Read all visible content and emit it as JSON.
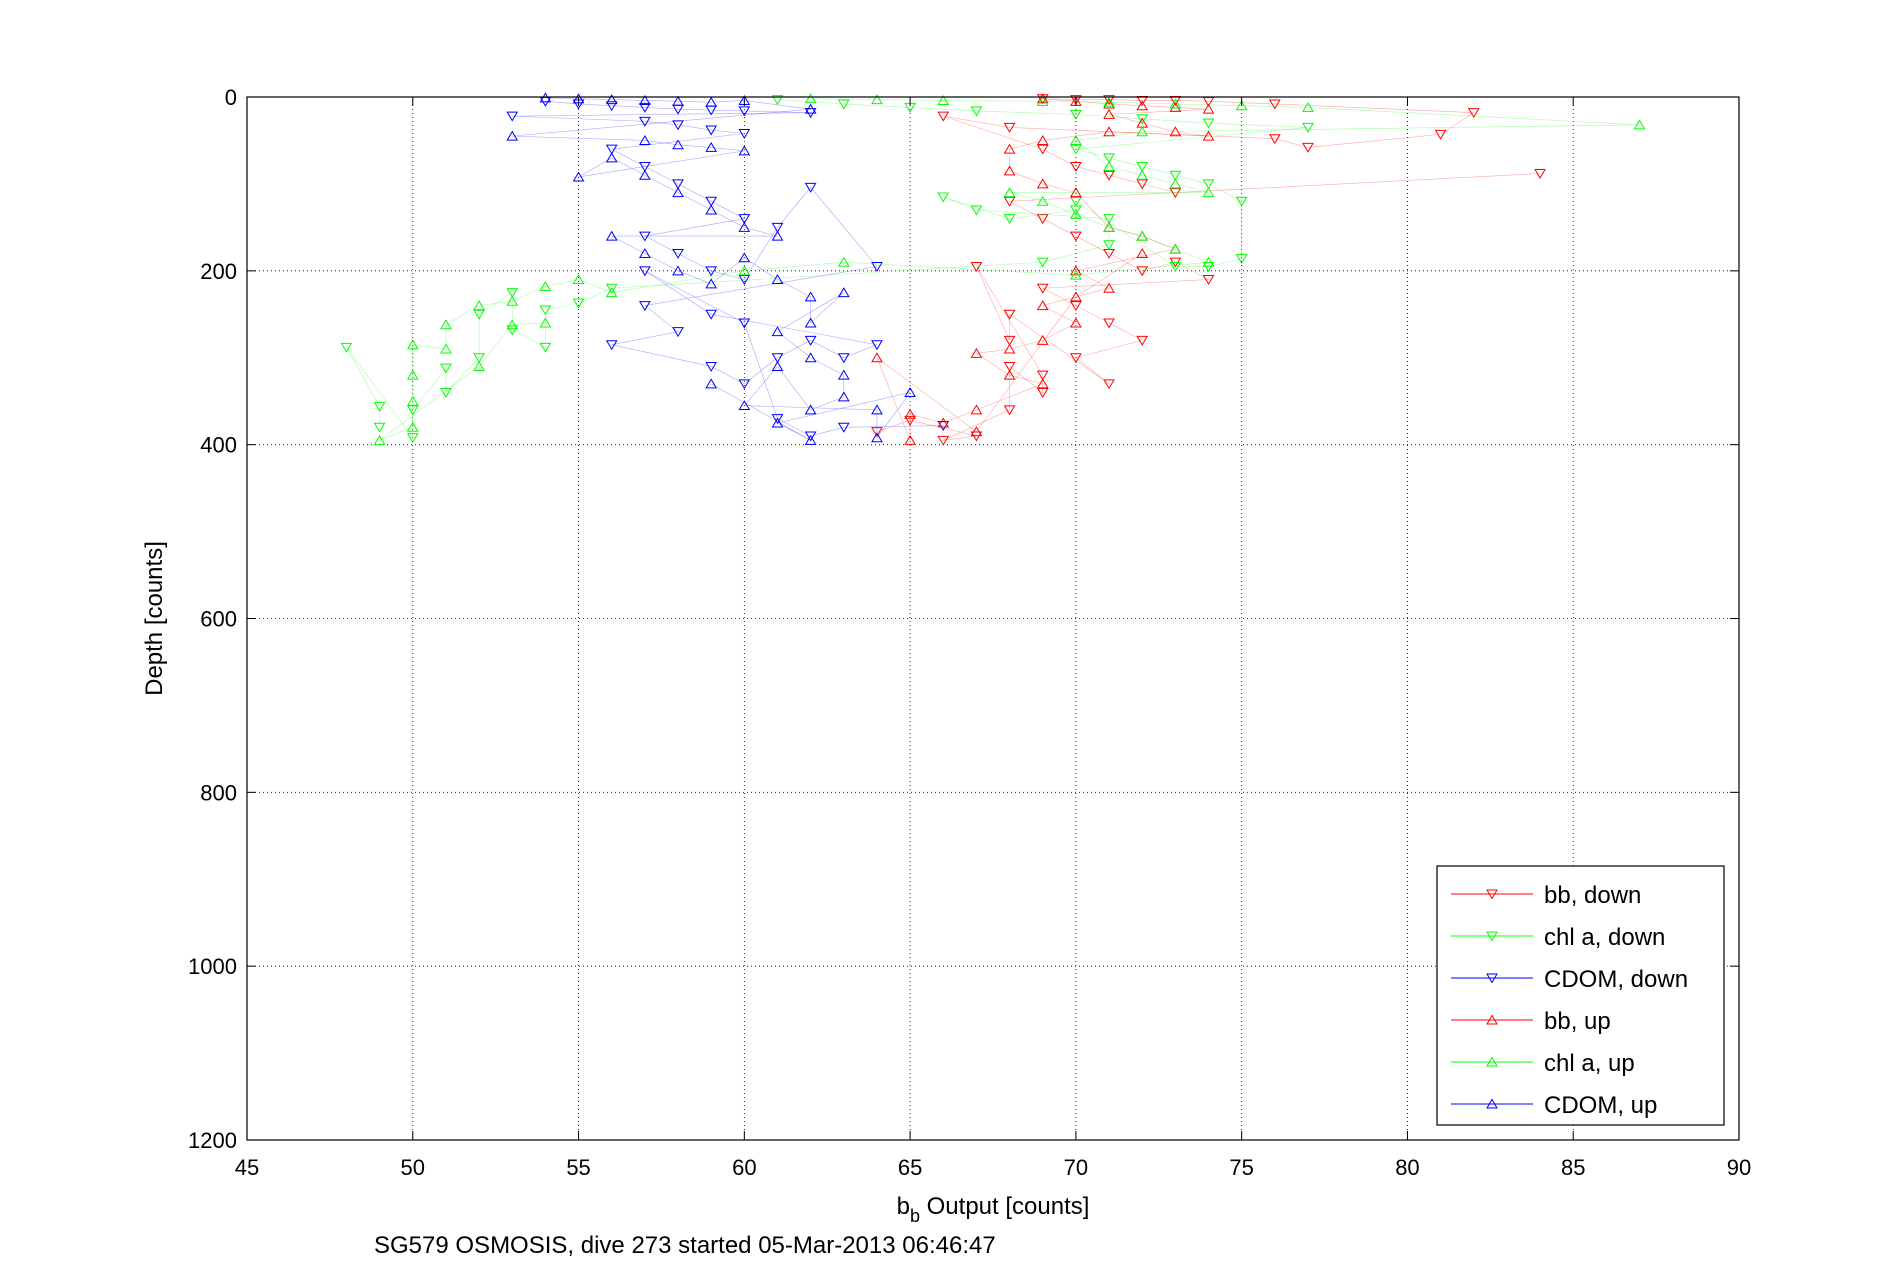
{
  "chart_data": {
    "type": "scatter",
    "title": "",
    "xlabel_main": "b",
    "xlabel_sub": "b",
    "xlabel_rest": " Output [counts]",
    "ylabel": "Depth [counts]",
    "caption": "SG579 OSMOSIS, dive 273 started 05-Mar-2013 06:46:47",
    "xlim": [
      45,
      90
    ],
    "ylim": [
      0,
      1200
    ],
    "y_reversed": true,
    "grid": true,
    "legend_position": "bottom-right",
    "x_ticks": [
      "45",
      "50",
      "55",
      "60",
      "65",
      "70",
      "75",
      "80",
      "85",
      "90"
    ],
    "y_ticks": [
      "0",
      "200",
      "400",
      "600",
      "800",
      "1000",
      "1200"
    ],
    "series": [
      {
        "name": "bb, down",
        "color": "#ff0000",
        "marker": "triangle-down",
        "points": [
          [
            69,
            2
          ],
          [
            70,
            3
          ],
          [
            71,
            3
          ],
          [
            72,
            4
          ],
          [
            73,
            4
          ],
          [
            74,
            5
          ],
          [
            76,
            8
          ],
          [
            82,
            18
          ],
          [
            81,
            43
          ],
          [
            77,
            58
          ],
          [
            76,
            48
          ],
          [
            68,
            35
          ],
          [
            66,
            22
          ],
          [
            69,
            60
          ],
          [
            70,
            80
          ],
          [
            71,
            90
          ],
          [
            72,
            100
          ],
          [
            73,
            110
          ],
          [
            84,
            88
          ],
          [
            68,
            120
          ],
          [
            69,
            140
          ],
          [
            70,
            160
          ],
          [
            71,
            180
          ],
          [
            72,
            200
          ],
          [
            73,
            190
          ],
          [
            74,
            210
          ],
          [
            69,
            220
          ],
          [
            70,
            240
          ],
          [
            71,
            260
          ],
          [
            72,
            280
          ],
          [
            70,
            300
          ],
          [
            71,
            330
          ],
          [
            68,
            250
          ],
          [
            68,
            280
          ],
          [
            67,
            195
          ],
          [
            69,
            320
          ],
          [
            69,
            340
          ],
          [
            68,
            310
          ],
          [
            68,
            360
          ],
          [
            66,
            395
          ],
          [
            67,
            390
          ],
          [
            65,
            372
          ],
          [
            64,
            385
          ]
        ]
      },
      {
        "name": "chl a, down",
        "color": "#00ff00",
        "marker": "triangle-down",
        "points": [
          [
            61,
            3
          ],
          [
            63,
            8
          ],
          [
            65,
            12
          ],
          [
            67,
            16
          ],
          [
            70,
            20
          ],
          [
            72,
            25
          ],
          [
            74,
            30
          ],
          [
            77,
            35
          ],
          [
            70,
            60
          ],
          [
            71,
            70
          ],
          [
            72,
            80
          ],
          [
            73,
            90
          ],
          [
            74,
            100
          ],
          [
            75,
            120
          ],
          [
            75,
            186
          ],
          [
            74,
            195
          ],
          [
            73,
            195
          ],
          [
            70,
            120
          ],
          [
            70,
            130
          ],
          [
            68,
            140
          ],
          [
            66,
            115
          ],
          [
            67,
            130
          ],
          [
            71,
            140
          ],
          [
            71,
            170
          ],
          [
            69,
            190
          ],
          [
            56,
            220
          ],
          [
            55,
            237
          ],
          [
            54,
            245
          ],
          [
            54,
            288
          ],
          [
            53,
            268
          ],
          [
            53,
            225
          ],
          [
            52,
            250
          ],
          [
            52,
            300
          ],
          [
            51,
            340
          ],
          [
            51,
            312
          ],
          [
            50,
            360
          ],
          [
            50,
            392
          ],
          [
            48,
            288
          ],
          [
            49,
            356
          ],
          [
            49,
            380
          ]
        ]
      },
      {
        "name": "CDOM, down",
        "color": "#0000ff",
        "marker": "triangle-down",
        "points": [
          [
            54,
            5
          ],
          [
            55,
            8
          ],
          [
            56,
            10
          ],
          [
            57,
            12
          ],
          [
            58,
            14
          ],
          [
            59,
            15
          ],
          [
            60,
            16
          ],
          [
            62,
            18
          ],
          [
            53,
            22
          ],
          [
            57,
            28
          ],
          [
            58,
            32
          ],
          [
            59,
            38
          ],
          [
            60,
            42
          ],
          [
            56,
            60
          ],
          [
            57,
            80
          ],
          [
            58,
            100
          ],
          [
            59,
            120
          ],
          [
            60,
            140
          ],
          [
            57,
            160
          ],
          [
            58,
            180
          ],
          [
            59,
            200
          ],
          [
            60,
            210
          ],
          [
            61,
            150
          ],
          [
            62,
            104
          ],
          [
            64,
            195
          ],
          [
            57,
            240
          ],
          [
            58,
            270
          ],
          [
            56,
            285
          ],
          [
            59,
            310
          ],
          [
            60,
            330
          ],
          [
            61,
            300
          ],
          [
            62,
            280
          ],
          [
            63,
            300
          ],
          [
            64,
            285
          ],
          [
            59,
            250
          ],
          [
            57,
            200
          ],
          [
            60,
            260
          ],
          [
            61,
            370
          ],
          [
            62,
            390
          ],
          [
            63,
            380
          ],
          [
            66,
            378
          ]
        ]
      },
      {
        "name": "bb, up",
        "color": "#ff0000",
        "marker": "triangle-up",
        "points": [
          [
            69,
            2
          ],
          [
            70,
            5
          ],
          [
            71,
            8
          ],
          [
            72,
            10
          ],
          [
            73,
            12
          ],
          [
            74,
            14
          ],
          [
            71,
            20
          ],
          [
            72,
            30
          ],
          [
            73,
            40
          ],
          [
            74,
            45
          ],
          [
            71,
            40
          ],
          [
            69,
            50
          ],
          [
            68,
            60
          ],
          [
            68,
            85
          ],
          [
            69,
            100
          ],
          [
            70,
            110
          ],
          [
            71,
            150
          ],
          [
            72,
            160
          ],
          [
            73,
            175
          ],
          [
            70,
            200
          ],
          [
            71,
            220
          ],
          [
            69,
            240
          ],
          [
            70,
            260
          ],
          [
            69,
            280
          ],
          [
            68,
            290
          ],
          [
            67,
            295
          ],
          [
            68,
            320
          ],
          [
            69,
            330
          ],
          [
            67,
            360
          ],
          [
            66,
            375
          ],
          [
            65,
            365
          ],
          [
            65,
            395
          ],
          [
            64,
            300
          ],
          [
            67,
            385
          ],
          [
            70,
            230
          ],
          [
            72,
            180
          ]
        ]
      },
      {
        "name": "chl a, up",
        "color": "#00ff00",
        "marker": "triangle-up",
        "points": [
          [
            62,
            2
          ],
          [
            64,
            3
          ],
          [
            66,
            4
          ],
          [
            69,
            5
          ],
          [
            71,
            6
          ],
          [
            73,
            8
          ],
          [
            75,
            10
          ],
          [
            77,
            12
          ],
          [
            87,
            32
          ],
          [
            72,
            40
          ],
          [
            70,
            50
          ],
          [
            71,
            80
          ],
          [
            72,
            90
          ],
          [
            73,
            100
          ],
          [
            74,
            110
          ],
          [
            68,
            110
          ],
          [
            69,
            120
          ],
          [
            70,
            135
          ],
          [
            71,
            150
          ],
          [
            72,
            160
          ],
          [
            73,
            175
          ],
          [
            74,
            190
          ],
          [
            70,
            205
          ],
          [
            63,
            190
          ],
          [
            60,
            200
          ],
          [
            56,
            225
          ],
          [
            55,
            210
          ],
          [
            54,
            218
          ],
          [
            53,
            235
          ],
          [
            52,
            240
          ],
          [
            51,
            262
          ],
          [
            51,
            290
          ],
          [
            50,
            285
          ],
          [
            50,
            320
          ],
          [
            50,
            350
          ],
          [
            50,
            380
          ],
          [
            49,
            395
          ],
          [
            52,
            310
          ],
          [
            53,
            262
          ],
          [
            54,
            260
          ]
        ]
      },
      {
        "name": "CDOM, up",
        "color": "#0000ff",
        "marker": "triangle-up",
        "points": [
          [
            54,
            1
          ],
          [
            55,
            2
          ],
          [
            56,
            3
          ],
          [
            57,
            4
          ],
          [
            58,
            5
          ],
          [
            59,
            6
          ],
          [
            60,
            4
          ],
          [
            62,
            14
          ],
          [
            53,
            45
          ],
          [
            57,
            50
          ],
          [
            58,
            55
          ],
          [
            59,
            58
          ],
          [
            60,
            62
          ],
          [
            55,
            92
          ],
          [
            56,
            70
          ],
          [
            57,
            90
          ],
          [
            58,
            110
          ],
          [
            59,
            130
          ],
          [
            60,
            150
          ],
          [
            61,
            160
          ],
          [
            56,
            160
          ],
          [
            57,
            180
          ],
          [
            58,
            200
          ],
          [
            59,
            215
          ],
          [
            60,
            185
          ],
          [
            61,
            210
          ],
          [
            62,
            230
          ],
          [
            62,
            260
          ],
          [
            63,
            225
          ],
          [
            61,
            270
          ],
          [
            62,
            300
          ],
          [
            63,
            320
          ],
          [
            63,
            345
          ],
          [
            62,
            360
          ],
          [
            61,
            310
          ],
          [
            60,
            355
          ],
          [
            64,
            360
          ],
          [
            64,
            392
          ],
          [
            65,
            340
          ],
          [
            61,
            375
          ],
          [
            62,
            395
          ],
          [
            59,
            330
          ]
        ]
      }
    ]
  }
}
